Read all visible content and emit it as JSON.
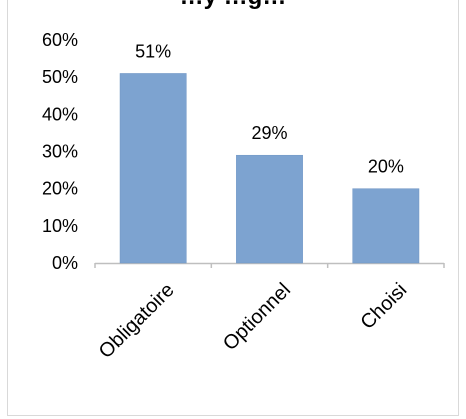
{
  "chart_data": {
    "type": "bar",
    "title": "…y     …g…",
    "categories": [
      "Obligatoire",
      "Optionnel",
      "Choisi"
    ],
    "values": [
      0.51,
      0.29,
      0.2
    ],
    "data_labels": [
      "51%",
      "29%",
      "20%"
    ],
    "ylim": [
      0,
      0.6
    ],
    "y_ticks": [
      "0%",
      "10%",
      "20%",
      "30%",
      "40%",
      "50%",
      "60%"
    ],
    "xlabel": "",
    "ylabel": "",
    "grid": false,
    "legend": "none",
    "bar_color": "#7da3d0",
    "bar_stroke": "#6f95c4",
    "axis_color": "#bfbfbf"
  }
}
